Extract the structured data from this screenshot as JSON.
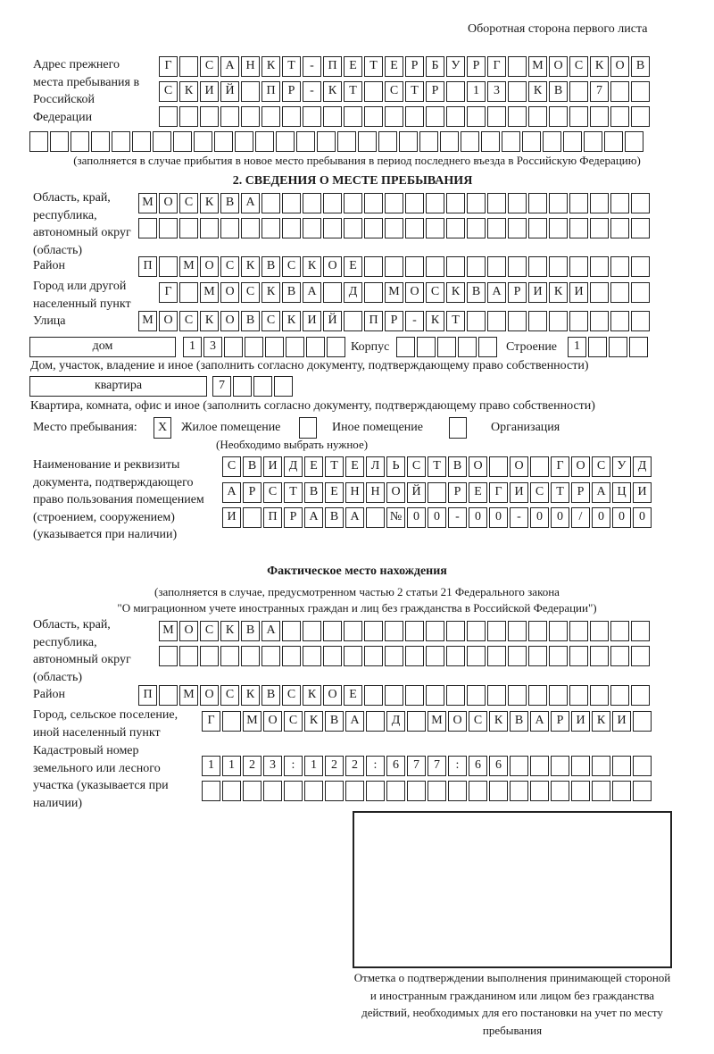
{
  "header": {
    "side_note": "Оборотная сторона первого листа"
  },
  "previous_address": {
    "label": "Адрес прежнего места пребывания в Российской Федерации",
    "rows": [
      [
        "Г",
        "",
        "С",
        "А",
        "Н",
        "К",
        "Т",
        "-",
        "П",
        "Е",
        "Т",
        "Е",
        "Р",
        "Б",
        "У",
        "Р",
        "Г",
        "",
        "М",
        "О",
        "С",
        "К",
        "О",
        "В"
      ],
      [
        "С",
        "К",
        "И",
        "Й",
        "",
        "П",
        "Р",
        "-",
        "К",
        "Т",
        "",
        "С",
        "Т",
        "Р",
        "",
        "1",
        "3",
        "",
        "К",
        "В",
        "",
        "7",
        "",
        ""
      ],
      [],
      []
    ],
    "note": "(заполняется в случае прибытия в новое место пребывания в период последнего въезда в Российскую Федерацию)"
  },
  "section2": {
    "title": "2. СВЕДЕНИЯ О МЕСТЕ ПРЕБЫВАНИЯ",
    "region": {
      "label": "Область, край, республика, автономный округ (область)",
      "rows": [
        [
          "М",
          "О",
          "С",
          "К",
          "В",
          "А"
        ],
        []
      ]
    },
    "district": {
      "label": "Район",
      "chars": [
        "П",
        "",
        "М",
        "О",
        "С",
        "К",
        "В",
        "С",
        "К",
        "О",
        "Е"
      ]
    },
    "city": {
      "label": "Город или другой населенный пункт",
      "chars": [
        "Г",
        "",
        "М",
        "О",
        "С",
        "К",
        "В",
        "А",
        "",
        "Д",
        "",
        "М",
        "О",
        "С",
        "К",
        "В",
        "А",
        "Р",
        "И",
        "К",
        "И"
      ]
    },
    "street": {
      "label": "Улица",
      "chars": [
        "М",
        "О",
        "С",
        "К",
        "О",
        "В",
        "С",
        "К",
        "И",
        "Й",
        "",
        "П",
        "Р",
        "-",
        "К",
        "Т"
      ]
    },
    "house": {
      "type": "дом",
      "chars": [
        "1",
        "3"
      ],
      "korpus_label": "Корпус",
      "korpus_chars": [],
      "building_label": "Строение",
      "building_chars": [
        "1"
      ]
    },
    "house_note": "Дом, участок, владение и иное (заполнить согласно документу, подтверждающему право собственности)",
    "apartment": {
      "type": "квартира",
      "chars": [
        "7"
      ]
    },
    "apartment_note": "Квартира, комната, офис и иное (заполнить согласно документу, подтверждающему право собственности)",
    "stay_place": {
      "label": "Место пребывания:",
      "options": [
        {
          "label": "Жилое помещение",
          "mark": "X"
        },
        {
          "label": "Иное помещение",
          "mark": ""
        },
        {
          "label": "Организация",
          "mark": ""
        }
      ],
      "hint": "(Необходимо выбрать нужное)"
    },
    "document": {
      "label": "Наименование и реквизиты документа, подтверждающего право пользования помещением (строением, сооружением) (указывается при наличии)",
      "rows": [
        [
          "С",
          "В",
          "И",
          "Д",
          "Е",
          "Т",
          "Е",
          "Л",
          "Ь",
          "С",
          "Т",
          "В",
          "О",
          "",
          "О",
          "",
          "Г",
          "О",
          "С",
          "У",
          "Д"
        ],
        [
          "А",
          "Р",
          "С",
          "Т",
          "В",
          "Е",
          "Н",
          "Н",
          "О",
          "Й",
          "",
          "Р",
          "Е",
          "Г",
          "И",
          "С",
          "Т",
          "Р",
          "А",
          "Ц",
          "И"
        ],
        [
          "И",
          "",
          "П",
          "Р",
          "А",
          "В",
          "А",
          "",
          "№",
          "0",
          "0",
          "-",
          "0",
          "0",
          "-",
          "0",
          "0",
          "/",
          "0",
          "0",
          "0"
        ]
      ]
    }
  },
  "actual": {
    "title": "Фактическое место нахождения",
    "note_line1": "(заполняется в случае, предусмотренном частью 2 статьи 21 Федерального закона",
    "note_line2": "\"О миграционном учете иностранных граждан и лиц без гражданства в Российской Федерации\")",
    "region": {
      "label": "Область, край, республика, автономный округ (область)",
      "rows": [
        [
          "М",
          "О",
          "С",
          "К",
          "В",
          "А"
        ],
        []
      ]
    },
    "district": {
      "label": "Район",
      "chars": [
        "П",
        "",
        "М",
        "О",
        "С",
        "К",
        "В",
        "С",
        "К",
        "О",
        "Е"
      ]
    },
    "city": {
      "label": "Город, сельское поселение, иной населенный пункт",
      "chars": [
        "Г",
        "",
        "М",
        "О",
        "С",
        "К",
        "В",
        "А",
        "",
        "Д",
        "",
        "М",
        "О",
        "С",
        "К",
        "В",
        "А",
        "Р",
        "И",
        "К",
        "И"
      ]
    },
    "cadastral": {
      "label": "Кадастровый номер земельного или лесного участка (указывается при наличии)",
      "rows": [
        [
          "1",
          "1",
          "2",
          "3",
          ":",
          "1",
          "2",
          "2",
          ":",
          "6",
          "7",
          "7",
          ":",
          "6",
          "6"
        ],
        []
      ]
    }
  },
  "stamp_box": {
    "caption": "Отметка о подтверждении выполнения принимающей стороной и иностранным гражданином или лицом без гражданства действий, необходимых для его постановки на учет по месту пребывания"
  }
}
